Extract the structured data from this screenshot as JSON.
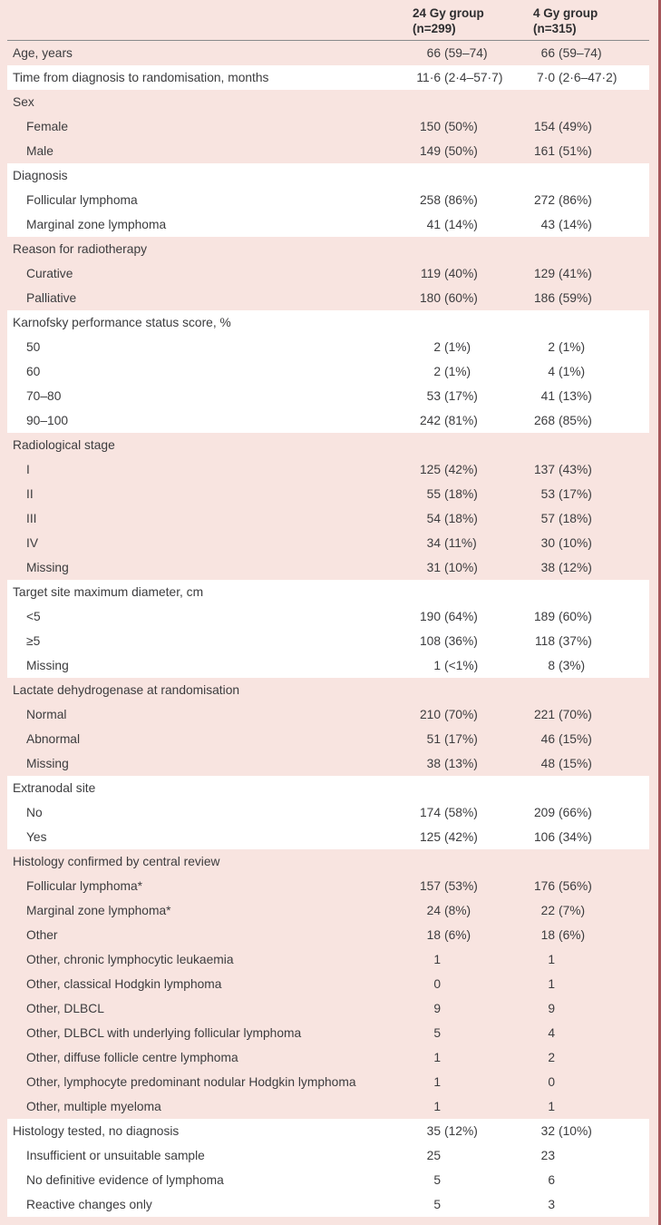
{
  "colors": {
    "band_pink": "#f8e4e0",
    "band_white": "#ffffff",
    "page_edge": "#a5565a",
    "rule": "#898a8c",
    "text": "#3c3c3e",
    "header_text": "#2e2e30"
  },
  "table": {
    "columns": [
      {
        "title": "24 Gy group",
        "n": "(n=299)"
      },
      {
        "title": "4 Gy group",
        "n": "(n=315)"
      }
    ],
    "sections": [
      {
        "bg": "pink",
        "rows": [
          {
            "label": "Age, years",
            "indent": false,
            "c1": "66",
            "p1": "(59–74)",
            "c2": "66",
            "p2": "(59–74)"
          }
        ]
      },
      {
        "bg": "white",
        "rows": [
          {
            "label": "Time from diagnosis to randomisation, months",
            "indent": false,
            "c1": "11·6",
            "p1": "(2·4–57·7)",
            "c2": "7·0",
            "p2": "(2·6–47·2)"
          }
        ]
      },
      {
        "bg": "pink",
        "rows": [
          {
            "label": "Sex",
            "indent": false,
            "c1": "",
            "p1": "",
            "c2": "",
            "p2": ""
          },
          {
            "label": "Female",
            "indent": true,
            "c1": "150",
            "p1": "(50%)",
            "c2": "154",
            "p2": "(49%)"
          },
          {
            "label": "Male",
            "indent": true,
            "c1": "149",
            "p1": "(50%)",
            "c2": "161",
            "p2": "(51%)"
          }
        ]
      },
      {
        "bg": "white",
        "rows": [
          {
            "label": "Diagnosis",
            "indent": false,
            "c1": "",
            "p1": "",
            "c2": "",
            "p2": ""
          },
          {
            "label": "Follicular lymphoma",
            "indent": true,
            "c1": "258",
            "p1": "(86%)",
            "c2": "272",
            "p2": "(86%)"
          },
          {
            "label": "Marginal zone lymphoma",
            "indent": true,
            "c1": "41",
            "p1": "(14%)",
            "c2": "43",
            "p2": "(14%)"
          }
        ]
      },
      {
        "bg": "pink",
        "rows": [
          {
            "label": "Reason for radiotherapy",
            "indent": false,
            "c1": "",
            "p1": "",
            "c2": "",
            "p2": ""
          },
          {
            "label": "Curative",
            "indent": true,
            "c1": "119",
            "p1": "(40%)",
            "c2": "129",
            "p2": "(41%)"
          },
          {
            "label": "Palliative",
            "indent": true,
            "c1": "180",
            "p1": "(60%)",
            "c2": "186",
            "p2": "(59%)"
          }
        ]
      },
      {
        "bg": "white",
        "rows": [
          {
            "label": "Karnofsky performance status score, %",
            "indent": false,
            "c1": "",
            "p1": "",
            "c2": "",
            "p2": ""
          },
          {
            "label": "50",
            "indent": true,
            "c1": "2",
            "p1": "(1%)",
            "c2": "2",
            "p2": "(1%)"
          },
          {
            "label": "60",
            "indent": true,
            "c1": "2",
            "p1": "(1%)",
            "c2": "4",
            "p2": "(1%)"
          },
          {
            "label": "70–80",
            "indent": true,
            "c1": "53",
            "p1": "(17%)",
            "c2": "41",
            "p2": "(13%)"
          },
          {
            "label": "90–100",
            "indent": true,
            "c1": "242",
            "p1": "(81%)",
            "c2": "268",
            "p2": "(85%)"
          }
        ]
      },
      {
        "bg": "pink",
        "rows": [
          {
            "label": "Radiological stage",
            "indent": false,
            "c1": "",
            "p1": "",
            "c2": "",
            "p2": ""
          },
          {
            "label": "I",
            "indent": true,
            "c1": "125",
            "p1": "(42%)",
            "c2": "137",
            "p2": "(43%)"
          },
          {
            "label": "II",
            "indent": true,
            "c1": "55",
            "p1": "(18%)",
            "c2": "53",
            "p2": "(17%)"
          },
          {
            "label": "III",
            "indent": true,
            "c1": "54",
            "p1": "(18%)",
            "c2": "57",
            "p2": "(18%)"
          },
          {
            "label": "IV",
            "indent": true,
            "c1": "34",
            "p1": "(11%)",
            "c2": "30",
            "p2": "(10%)"
          },
          {
            "label": "Missing",
            "indent": true,
            "c1": "31",
            "p1": "(10%)",
            "c2": "38",
            "p2": "(12%)"
          }
        ]
      },
      {
        "bg": "white",
        "rows": [
          {
            "label": "Target site maximum diameter, cm",
            "indent": false,
            "c1": "",
            "p1": "",
            "c2": "",
            "p2": ""
          },
          {
            "label": "<5",
            "indent": true,
            "c1": "190",
            "p1": "(64%)",
            "c2": "189",
            "p2": "(60%)"
          },
          {
            "label": "≥5",
            "indent": true,
            "c1": "108",
            "p1": "(36%)",
            "c2": "118",
            "p2": "(37%)"
          },
          {
            "label": "Missing",
            "indent": true,
            "c1": "1",
            "p1": "(<1%)",
            "c2": "8",
            "p2": "(3%)"
          }
        ]
      },
      {
        "bg": "pink",
        "rows": [
          {
            "label": "Lactate dehydrogenase at randomisation",
            "indent": false,
            "c1": "",
            "p1": "",
            "c2": "",
            "p2": ""
          },
          {
            "label": "Normal",
            "indent": true,
            "c1": "210",
            "p1": "(70%)",
            "c2": "221",
            "p2": "(70%)"
          },
          {
            "label": "Abnormal",
            "indent": true,
            "c1": "51",
            "p1": "(17%)",
            "c2": "46",
            "p2": "(15%)"
          },
          {
            "label": "Missing",
            "indent": true,
            "c1": "38",
            "p1": "(13%)",
            "c2": "48",
            "p2": "(15%)"
          }
        ]
      },
      {
        "bg": "white",
        "rows": [
          {
            "label": "Extranodal site",
            "indent": false,
            "c1": "",
            "p1": "",
            "c2": "",
            "p2": ""
          },
          {
            "label": "No",
            "indent": true,
            "c1": "174",
            "p1": "(58%)",
            "c2": "209",
            "p2": "(66%)"
          },
          {
            "label": "Yes",
            "indent": true,
            "c1": "125",
            "p1": "(42%)",
            "c2": "106",
            "p2": "(34%)"
          }
        ]
      },
      {
        "bg": "pink",
        "rows": [
          {
            "label": "Histology confirmed by central review",
            "indent": false,
            "c1": "",
            "p1": "",
            "c2": "",
            "p2": ""
          },
          {
            "label": "Follicular lymphoma*",
            "indent": true,
            "c1": "157",
            "p1": "(53%)",
            "c2": "176",
            "p2": "(56%)"
          },
          {
            "label": "Marginal zone lymphoma*",
            "indent": true,
            "c1": "24",
            "p1": "(8%)",
            "c2": "22",
            "p2": "(7%)"
          },
          {
            "label": "Other",
            "indent": true,
            "c1": "18",
            "p1": "(6%)",
            "c2": "18",
            "p2": "(6%)"
          },
          {
            "label": "Other, chronic lymphocytic leukaemia",
            "indent": true,
            "c1": "1",
            "p1": "",
            "c2": "1",
            "p2": ""
          },
          {
            "label": "Other, classical Hodgkin lymphoma",
            "indent": true,
            "c1": "0",
            "p1": "",
            "c2": "1",
            "p2": ""
          },
          {
            "label": "Other, DLBCL",
            "indent": true,
            "c1": "9",
            "p1": "",
            "c2": "9",
            "p2": ""
          },
          {
            "label": "Other, DLBCL with underlying follicular lymphoma",
            "indent": true,
            "c1": "5",
            "p1": "",
            "c2": "4",
            "p2": ""
          },
          {
            "label": "Other, diffuse follicle centre lymphoma",
            "indent": true,
            "c1": "1",
            "p1": "",
            "c2": "2",
            "p2": ""
          },
          {
            "label": "Other, lymphocyte predominant nodular Hodgkin lymphoma",
            "indent": true,
            "c1": "1",
            "p1": "",
            "c2": "0",
            "p2": ""
          },
          {
            "label": "Other, multiple myeloma",
            "indent": true,
            "c1": "1",
            "p1": "",
            "c2": "1",
            "p2": ""
          }
        ]
      },
      {
        "bg": "white",
        "rows": [
          {
            "label": "Histology tested, no diagnosis",
            "indent": false,
            "c1": "35",
            "p1": "(12%)",
            "c2": "32",
            "p2": "(10%)"
          },
          {
            "label": "Insufficient or unsuitable sample",
            "indent": true,
            "c1": "25",
            "p1": "",
            "c2": "23",
            "p2": ""
          },
          {
            "label": "No definitive evidence of lymphoma",
            "indent": true,
            "c1": "5",
            "p1": "",
            "c2": "6",
            "p2": ""
          },
          {
            "label": "Reactive changes only",
            "indent": true,
            "c1": "5",
            "p1": "",
            "c2": "3",
            "p2": ""
          }
        ]
      }
    ]
  }
}
